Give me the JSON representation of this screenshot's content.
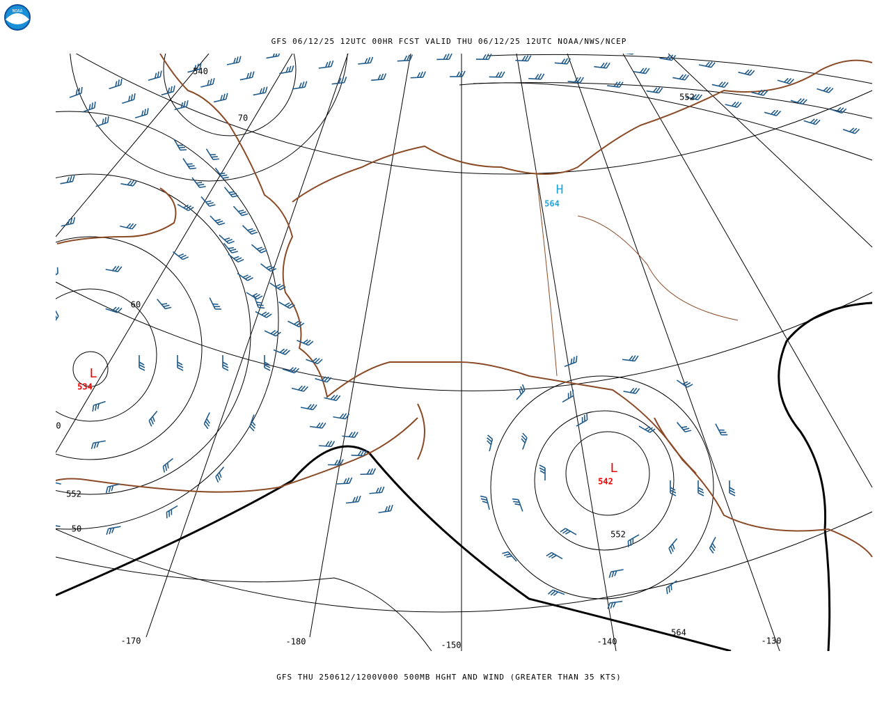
{
  "logo": {
    "text": "NOAA"
  },
  "header": {
    "title": "GFS 06/12/25 12UTC 00HR FCST VALID THU 06/12/25 12UTC NOAA/NWS/NCEP"
  },
  "footer": {
    "caption": "GFS THU 250612/1200V000 500MB HGHT AND WIND (GREATER THAN 35 KTS)"
  },
  "map": {
    "contour_labels": [
      "540",
      "552",
      "552",
      "552",
      "564",
      "0",
      "50"
    ],
    "latitude_labels": [
      "70",
      "60"
    ],
    "longitude_labels": [
      "-170",
      "-180",
      "-150",
      "-140",
      "-130"
    ],
    "centers": [
      {
        "symbol": "L",
        "value": "534"
      },
      {
        "symbol": "L",
        "value": "542"
      },
      {
        "symbol": "H",
        "value": "564"
      }
    ]
  }
}
